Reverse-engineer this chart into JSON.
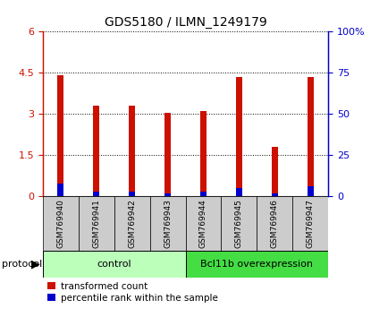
{
  "title": "GDS5180 / ILMN_1249179",
  "samples": [
    "GSM769940",
    "GSM769941",
    "GSM769942",
    "GSM769943",
    "GSM769944",
    "GSM769945",
    "GSM769946",
    "GSM769947"
  ],
  "transformed_counts": [
    4.4,
    3.3,
    3.3,
    3.05,
    3.1,
    4.35,
    1.8,
    4.35
  ],
  "percentile_ranks_pct": [
    8,
    3,
    3,
    2,
    3,
    5,
    2,
    6
  ],
  "ylim_left": [
    0,
    6
  ],
  "ylim_right": [
    0,
    100
  ],
  "yticks_left": [
    0,
    1.5,
    3,
    4.5,
    6
  ],
  "yticks_right": [
    0,
    25,
    50,
    75,
    100
  ],
  "ytick_labels_left": [
    "0",
    "1.5",
    "3",
    "4.5",
    "6"
  ],
  "ytick_labels_right": [
    "0",
    "25",
    "50",
    "75",
    "100%"
  ],
  "bar_color_red": "#CC1100",
  "bar_color_blue": "#0000CC",
  "bar_width": 0.18,
  "groups": [
    {
      "label": "control",
      "span": [
        0,
        4
      ],
      "color": "#BBFFBB"
    },
    {
      "label": "Bcl11b overexpression",
      "span": [
        4,
        8
      ],
      "color": "#44DD44"
    }
  ],
  "protocol_label": "protocol",
  "legend_red": "transformed count",
  "legend_blue": "percentile rank within the sample",
  "grid_color": "black",
  "label_box_color": "#CCCCCC",
  "fig_width": 4.15,
  "fig_height": 3.54
}
